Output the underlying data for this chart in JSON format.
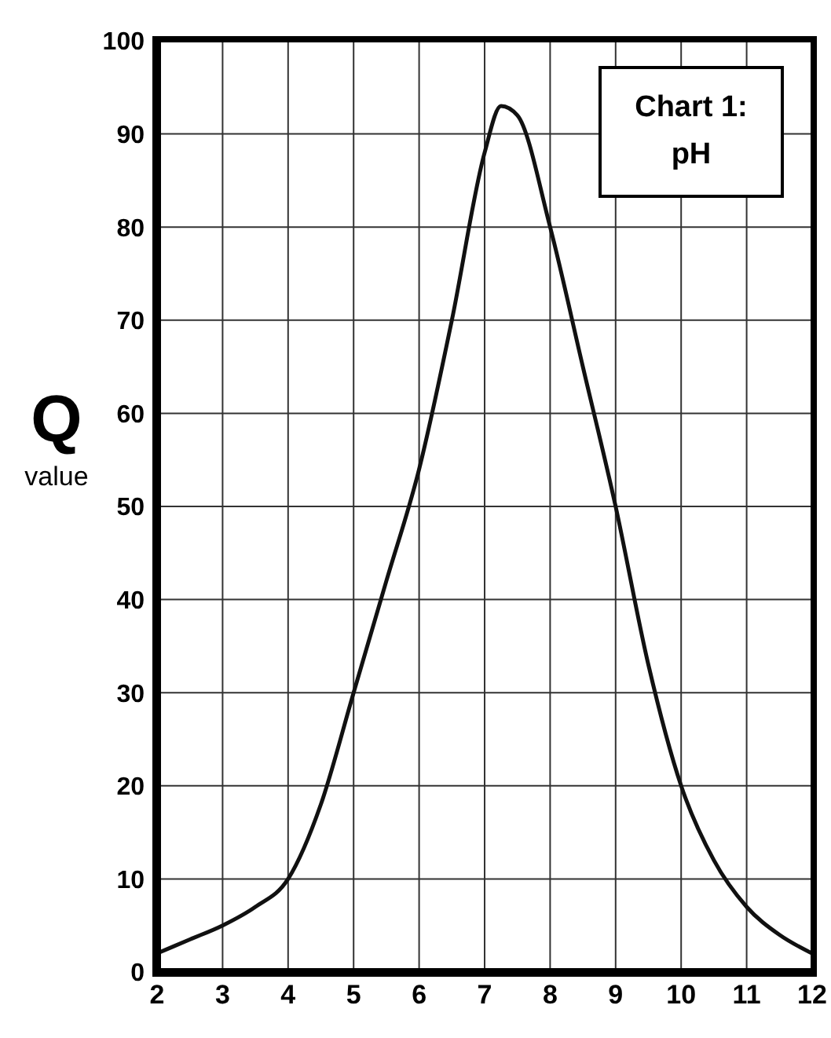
{
  "chart_data": {
    "type": "line",
    "title": "Chart 1: pH",
    "ylabel": "Q value",
    "x": [
      2,
      2.5,
      3,
      3.5,
      4,
      4.5,
      5,
      5.5,
      6,
      6.5,
      7,
      7.25,
      7.5,
      8,
      8.5,
      9,
      9.5,
      10,
      10.5,
      11,
      11.5,
      12
    ],
    "series": [
      {
        "color": "#111111",
        "values": [
          2,
          3.5,
          5,
          7,
          10,
          18,
          30,
          42,
          54,
          70,
          88,
          93,
          92,
          80,
          65,
          50,
          33,
          20,
          12,
          7,
          4,
          2
        ]
      }
    ],
    "xlim": [
      2,
      12
    ],
    "xticks": [
      2,
      3,
      4,
      5,
      6,
      7,
      8,
      9,
      10,
      11,
      12
    ],
    "ylim": [
      0,
      100
    ],
    "yticks": [
      0,
      10,
      20,
      30,
      40,
      50,
      60,
      70,
      80,
      90,
      100
    ],
    "grid": true,
    "marker": "none",
    "line_style": "solid"
  }
}
